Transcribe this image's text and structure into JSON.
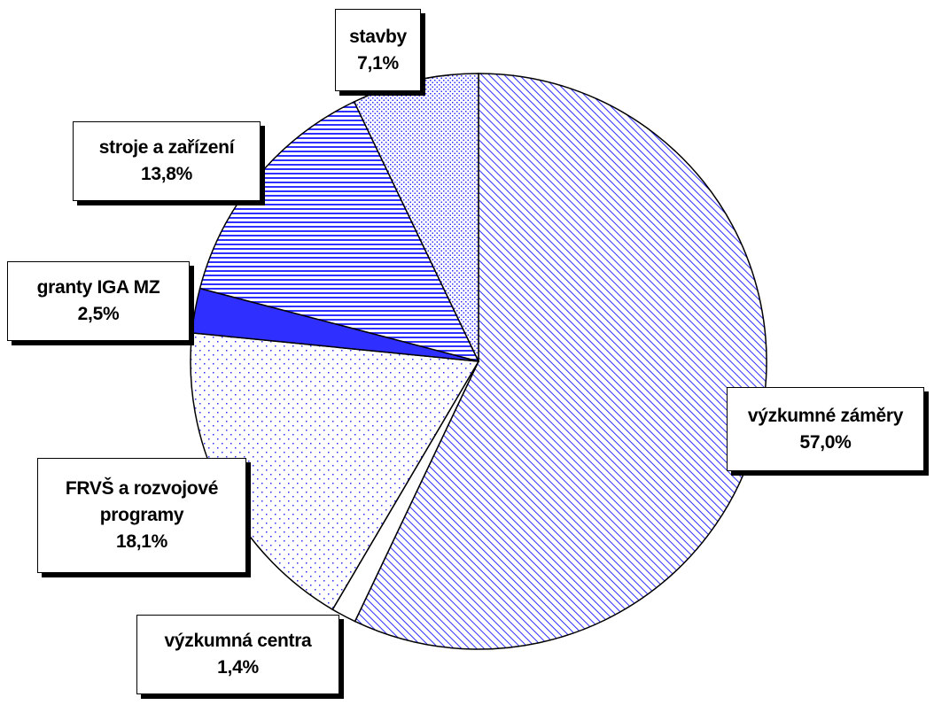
{
  "chart_data": {
    "type": "pie",
    "categories": [
      "výzkumné záměry",
      "výzkumná centra",
      "FRVŠ a rozvojové programy",
      "granty IGA MZ",
      "stroje a zařízení",
      "stavby"
    ],
    "values": [
      57.0,
      1.4,
      18.1,
      2.5,
      13.8,
      7.1
    ],
    "value_labels": [
      "57,0%",
      "1,4%",
      "18,1%",
      "2,5%",
      "13,8%",
      "7,1%"
    ],
    "color": "#2f2fff",
    "patterns": [
      "diagonal",
      "none",
      "sparse-dots",
      "solid",
      "horizontal",
      "dense-dots"
    ]
  }
}
